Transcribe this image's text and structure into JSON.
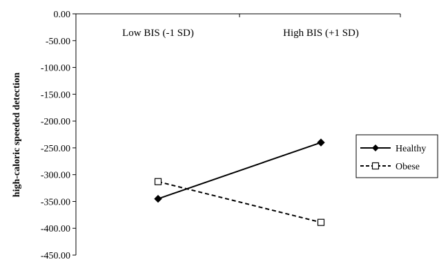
{
  "chart_data": {
    "type": "line",
    "title": "",
    "xlabel": "",
    "ylabel": "high-caloric speeded detection",
    "categories": [
      "Low BIS (-1 SD)",
      "High BIS (+1 SD)"
    ],
    "ylim": [
      -450,
      0
    ],
    "yticks": [
      0,
      -50,
      -100,
      -150,
      -200,
      -250,
      -300,
      -350,
      -400,
      -450
    ],
    "ytick_labels": [
      "0.00",
      "-50.00",
      "-100.00",
      "-150.00",
      "-200.00",
      "-250.00",
      "-300.00",
      "-350.00",
      "-400.00",
      "-450.00"
    ],
    "x_axis_position": "top",
    "grid": false,
    "legend_position": "right",
    "series": [
      {
        "name": "Healthy",
        "values": [
          -345,
          -240
        ],
        "line": "solid",
        "marker": "filled-diamond",
        "color": "#000000"
      },
      {
        "name": "Obese",
        "values": [
          -313,
          -389
        ],
        "line": "dashed",
        "marker": "open-square",
        "color": "#000000"
      }
    ]
  }
}
